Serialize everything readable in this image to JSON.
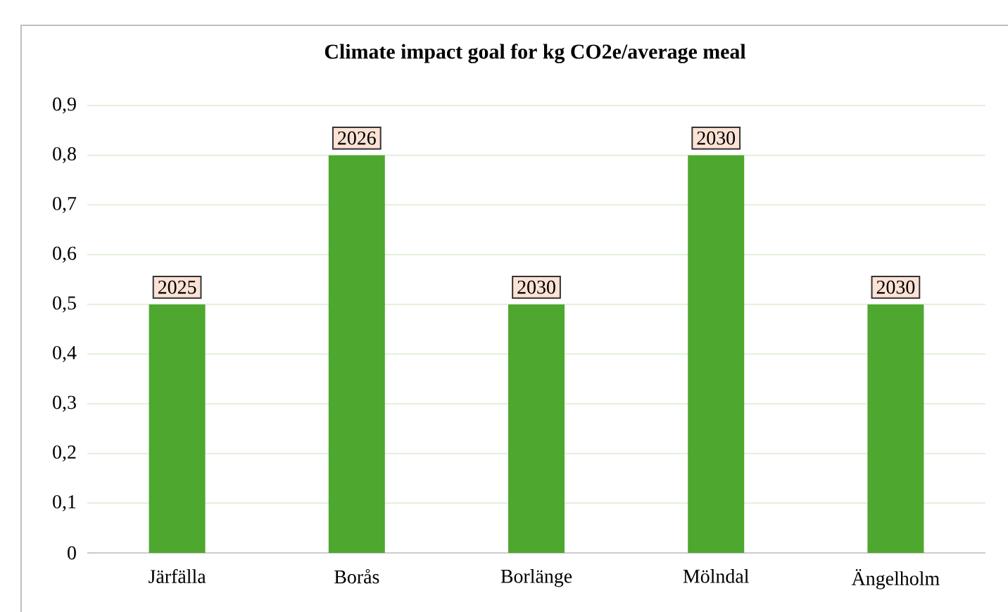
{
  "chart_data": {
    "type": "bar",
    "title": "Climate impact goal for kg CO2e/average meal",
    "categories": [
      "Järfälla",
      "Borås",
      "Borlänge",
      "Mölndal",
      "Ängelholm"
    ],
    "values": [
      0.5,
      0.8,
      0.5,
      0.8,
      0.5
    ],
    "annotations": [
      {
        "text": "2025",
        "x": "Järfälla",
        "y": 0.5
      },
      {
        "text": "2026",
        "x": "Borås",
        "y": 0.8
      },
      {
        "text": "2030",
        "x": "Borlänge",
        "y": 0.5
      },
      {
        "text": "2030",
        "x": "Mölndal",
        "y": 0.8
      },
      {
        "text": "2030",
        "x": "Ängelholm",
        "y": 0.5
      }
    ],
    "color": "#4ea72e",
    "ylim": [
      0,
      0.9
    ],
    "yticks": [
      {
        "value": 0,
        "label": "0"
      },
      {
        "value": 0.1,
        "label": "0,1"
      },
      {
        "value": 0.2,
        "label": "0,2"
      },
      {
        "value": 0.3,
        "label": "0,3"
      },
      {
        "value": 0.4,
        "label": "0,4"
      },
      {
        "value": 0.5,
        "label": "0,5"
      },
      {
        "value": 0.6,
        "label": "0,6"
      },
      {
        "value": 0.7,
        "label": "0,7"
      },
      {
        "value": 0.8,
        "label": "0,8"
      },
      {
        "value": 0.9,
        "label": "0,9"
      }
    ],
    "grid": "y"
  }
}
